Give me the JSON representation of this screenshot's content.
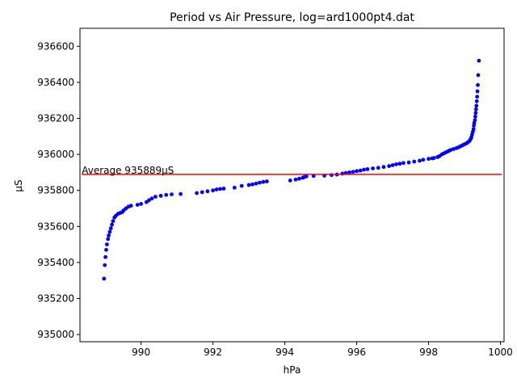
{
  "chart_data": {
    "type": "scatter",
    "title": "Period vs Air Pressure, log=ard1000pt4.dat",
    "xlabel": "hPa",
    "ylabel": "µS",
    "xlim": [
      988.3,
      1000.1
    ],
    "ylim": [
      934960,
      936700
    ],
    "xticks": [
      990,
      992,
      994,
      996,
      998,
      1000
    ],
    "yticks": [
      935000,
      935200,
      935400,
      935600,
      935800,
      936000,
      936200,
      936400,
      936600
    ],
    "grid": false,
    "average": {
      "value": 935889,
      "label": "Average 935889µS",
      "color": "#ff0000"
    },
    "series": [
      {
        "color": "#0000ff",
        "points": [
          [
            988.97,
            935310
          ],
          [
            988.99,
            935385
          ],
          [
            989.01,
            935430
          ],
          [
            989.03,
            935470
          ],
          [
            989.05,
            935500
          ],
          [
            989.08,
            935530
          ],
          [
            989.1,
            935550
          ],
          [
            989.13,
            935570
          ],
          [
            989.16,
            935590
          ],
          [
            989.19,
            935610
          ],
          [
            989.22,
            935630
          ],
          [
            989.26,
            935650
          ],
          [
            989.3,
            935660
          ],
          [
            989.36,
            935670
          ],
          [
            989.42,
            935675
          ],
          [
            989.48,
            935680
          ],
          [
            989.52,
            935690
          ],
          [
            989.58,
            935700
          ],
          [
            989.65,
            935710
          ],
          [
            989.72,
            935715
          ],
          [
            989.9,
            935720
          ],
          [
            990.0,
            935725
          ],
          [
            990.15,
            935735
          ],
          [
            990.22,
            935745
          ],
          [
            990.3,
            935755
          ],
          [
            990.4,
            935765
          ],
          [
            990.55,
            935770
          ],
          [
            990.7,
            935775
          ],
          [
            990.85,
            935778
          ],
          [
            991.1,
            935780
          ],
          [
            991.55,
            935785
          ],
          [
            991.7,
            935790
          ],
          [
            991.85,
            935795
          ],
          [
            992.0,
            935800
          ],
          [
            992.1,
            935805
          ],
          [
            992.2,
            935808
          ],
          [
            992.3,
            935810
          ],
          [
            992.6,
            935815
          ],
          [
            992.8,
            935825
          ],
          [
            993.0,
            935830
          ],
          [
            993.1,
            935833
          ],
          [
            993.2,
            935838
          ],
          [
            993.3,
            935843
          ],
          [
            993.4,
            935847
          ],
          [
            993.5,
            935850
          ],
          [
            994.15,
            935855
          ],
          [
            994.3,
            935860
          ],
          [
            994.4,
            935865
          ],
          [
            994.5,
            935870
          ],
          [
            994.55,
            935875
          ],
          [
            994.6,
            935878
          ],
          [
            994.8,
            935880
          ],
          [
            995.1,
            935882
          ],
          [
            995.3,
            935885
          ],
          [
            995.45,
            935888
          ],
          [
            995.6,
            935893
          ],
          [
            995.7,
            935897
          ],
          [
            995.8,
            935900
          ],
          [
            995.9,
            935903
          ],
          [
            996.0,
            935907
          ],
          [
            996.1,
            935910
          ],
          [
            996.2,
            935915
          ],
          [
            996.3,
            935918
          ],
          [
            996.45,
            935922
          ],
          [
            996.6,
            935925
          ],
          [
            996.75,
            935930
          ],
          [
            996.9,
            935935
          ],
          [
            997.0,
            935940
          ],
          [
            997.1,
            935945
          ],
          [
            997.2,
            935948
          ],
          [
            997.3,
            935952
          ],
          [
            997.45,
            935955
          ],
          [
            997.6,
            935960
          ],
          [
            997.75,
            935965
          ],
          [
            997.85,
            935970
          ],
          [
            998.0,
            935975
          ],
          [
            998.1,
            935978
          ],
          [
            998.15,
            935980
          ],
          [
            998.25,
            935985
          ],
          [
            998.3,
            935990
          ],
          [
            998.37,
            936000
          ],
          [
            998.42,
            936005
          ],
          [
            998.47,
            936010
          ],
          [
            998.52,
            936015
          ],
          [
            998.57,
            936020
          ],
          [
            998.62,
            936025
          ],
          [
            998.7,
            936030
          ],
          [
            998.78,
            936035
          ],
          [
            998.84,
            936040
          ],
          [
            998.89,
            936045
          ],
          [
            998.94,
            936050
          ],
          [
            998.99,
            936055
          ],
          [
            999.04,
            936060
          ],
          [
            999.08,
            936065
          ],
          [
            999.11,
            936070
          ],
          [
            999.14,
            936075
          ],
          [
            999.17,
            936085
          ],
          [
            999.19,
            936095
          ],
          [
            999.21,
            936110
          ],
          [
            999.23,
            936125
          ],
          [
            999.25,
            936140
          ],
          [
            999.26,
            936160
          ],
          [
            999.27,
            936175
          ],
          [
            999.29,
            936190
          ],
          [
            999.3,
            936210
          ],
          [
            999.31,
            936230
          ],
          [
            999.32,
            936250
          ],
          [
            999.33,
            936270
          ],
          [
            999.34,
            936295
          ],
          [
            999.35,
            936320
          ],
          [
            999.36,
            936350
          ],
          [
            999.37,
            936385
          ],
          [
            999.38,
            936440
          ],
          [
            999.4,
            936520
          ]
        ]
      }
    ]
  }
}
